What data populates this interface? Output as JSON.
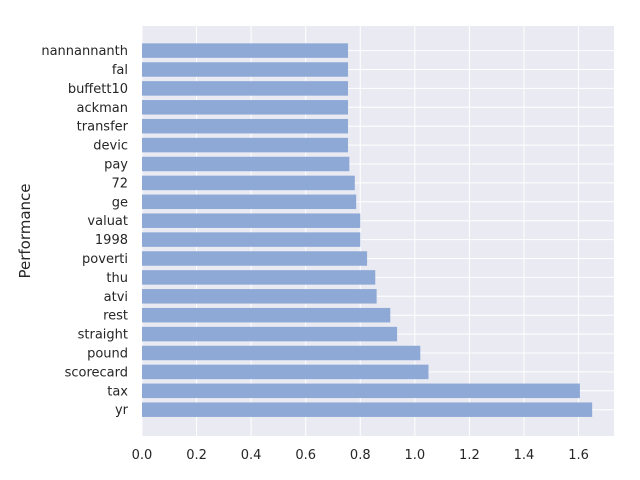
{
  "chart_data": {
    "type": "bar",
    "orientation": "horizontal",
    "categories": [
      "nannannanth",
      "fal",
      "buffett10",
      "ackman",
      "transfer",
      "devic",
      "pay",
      "72",
      "ge",
      "valuat",
      "1998",
      "poverti",
      "thu",
      "atvi",
      "rest",
      "straight",
      "pound",
      "scorecard",
      "tax",
      "yr"
    ],
    "values": [
      0.755,
      0.755,
      0.755,
      0.755,
      0.755,
      0.755,
      0.76,
      0.78,
      0.785,
      0.8,
      0.8,
      0.825,
      0.855,
      0.86,
      0.91,
      0.935,
      1.02,
      1.05,
      1.605,
      1.65
    ],
    "title": "",
    "xlabel": "",
    "ylabel": "Performance",
    "xlim": [
      0,
      1.73
    ],
    "xticks": [
      "0.0",
      "0.2",
      "0.4",
      "0.6",
      "0.8",
      "1.0",
      "1.2",
      "1.4",
      "1.6"
    ],
    "grid": true,
    "colors": {
      "bar": "#8fa9d6",
      "plot_background": "#eaeaf2",
      "grid": "#ffffff",
      "text": "#262626"
    }
  }
}
